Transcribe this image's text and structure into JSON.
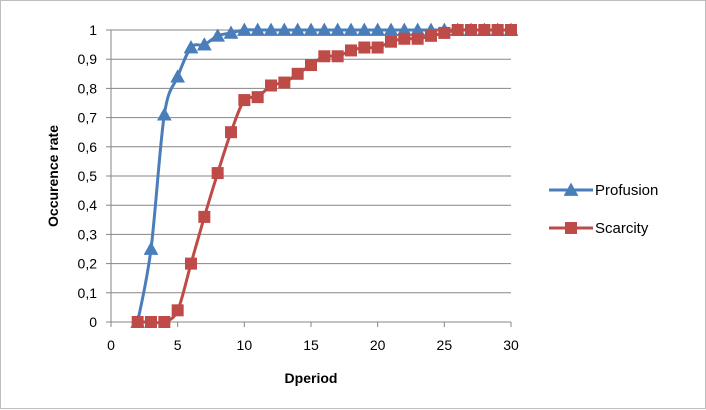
{
  "chart_data": {
    "type": "line",
    "xlabel": "Dperiod",
    "ylabel": "Occurence rate",
    "xlim": [
      0,
      30
    ],
    "ylim": [
      0,
      1
    ],
    "x_ticks": [
      "0",
      "5",
      "10",
      "15",
      "20",
      "25",
      "30"
    ],
    "y_ticks": [
      "0",
      "0,1",
      "0,2",
      "0,3",
      "0,4",
      "0,5",
      "0,6",
      "0,7",
      "0,8",
      "0,9",
      "1"
    ],
    "grid": "horizontal",
    "legend_position": "right",
    "series": [
      {
        "name": "Profusion",
        "color": "#4a7ebb",
        "marker": "triangle",
        "x": [
          2,
          3,
          4,
          5,
          6,
          7,
          8,
          9,
          10,
          11,
          12,
          13,
          14,
          15,
          16,
          17,
          18,
          19,
          20,
          21,
          22,
          23,
          24,
          25,
          26,
          27,
          28,
          29,
          30
        ],
        "y": [
          0,
          0.25,
          0.71,
          0.84,
          0.94,
          0.95,
          0.98,
          0.99,
          1,
          1,
          1,
          1,
          1,
          1,
          1,
          1,
          1,
          1,
          1,
          1,
          1,
          1,
          1,
          1,
          1,
          1,
          1,
          1,
          1
        ]
      },
      {
        "name": "Scarcity",
        "color": "#be4b48",
        "marker": "square",
        "x": [
          2,
          3,
          4,
          5,
          6,
          7,
          8,
          9,
          10,
          11,
          12,
          13,
          14,
          15,
          16,
          17,
          18,
          19,
          20,
          21,
          22,
          23,
          24,
          25,
          26,
          27,
          28,
          29,
          30
        ],
        "y": [
          0,
          0,
          0,
          0.04,
          0.2,
          0.36,
          0.51,
          0.65,
          0.76,
          0.77,
          0.81,
          0.82,
          0.85,
          0.88,
          0.91,
          0.91,
          0.93,
          0.94,
          0.94,
          0.96,
          0.97,
          0.97,
          0.98,
          0.99,
          1,
          1,
          1,
          1,
          1
        ]
      }
    ]
  }
}
